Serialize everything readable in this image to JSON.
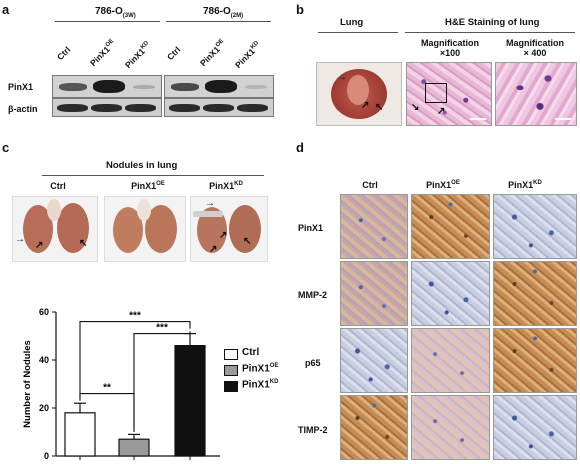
{
  "panel_a": {
    "letter": "a",
    "groups": [
      {
        "name_main": "786-O",
        "name_sub": "(3W)"
      },
      {
        "name_main": "786-O",
        "name_sub": "(2M)"
      }
    ],
    "lanes": [
      {
        "main": "Ctrl",
        "sup": ""
      },
      {
        "main": "PinX1",
        "sup": "OE"
      },
      {
        "main": "PinX1",
        "sup": "KD"
      }
    ],
    "rows": [
      "PinX1",
      "β-actin"
    ]
  },
  "panel_b": {
    "letter": "b",
    "lung_label": "Lung",
    "he_label": "H&E Staining of lung",
    "mag1_line1": "Magnification",
    "mag1_line2": "×100",
    "mag2_line1": "Magnification",
    "mag2_line2": "× 400"
  },
  "panel_c": {
    "letter": "c",
    "title": "Nodules in lung",
    "columns": [
      {
        "main": "Ctrl",
        "sup": ""
      },
      {
        "main": "PinX1",
        "sup": "OE"
      },
      {
        "main": "PinX1",
        "sup": "KD"
      }
    ]
  },
  "panel_d": {
    "letter": "d",
    "columns": [
      {
        "main": "Ctrl",
        "sup": ""
      },
      {
        "main": "PinX1",
        "sup": "OE"
      },
      {
        "main": "PinX1",
        "sup": "KD"
      }
    ],
    "rows": [
      "PinX1",
      "MMP-2",
      "p65",
      "TIMP-2"
    ]
  },
  "chart_data": {
    "type": "bar",
    "categories": [
      "Ctrl",
      "PinX1OE",
      "PinX1KD"
    ],
    "values": [
      18,
      7,
      46
    ],
    "errors": [
      4,
      2,
      5
    ],
    "ylabel": "Number of Nodules",
    "ylim": [
      0,
      60
    ],
    "yticks": [
      0,
      20,
      40,
      60
    ],
    "legend": [
      {
        "main": "Ctrl",
        "sup": ""
      },
      {
        "main": "PinX1",
        "sup": "OE"
      },
      {
        "main": "PinX1",
        "sup": "KD"
      }
    ],
    "colors": [
      "#ffffff",
      "#9a9a9a",
      "#111111"
    ],
    "significance": [
      {
        "pair": [
          0,
          1
        ],
        "label": "**"
      },
      {
        "pair": [
          0,
          2
        ],
        "label": "***"
      },
      {
        "pair": [
          1,
          2
        ],
        "label": "***"
      }
    ]
  }
}
